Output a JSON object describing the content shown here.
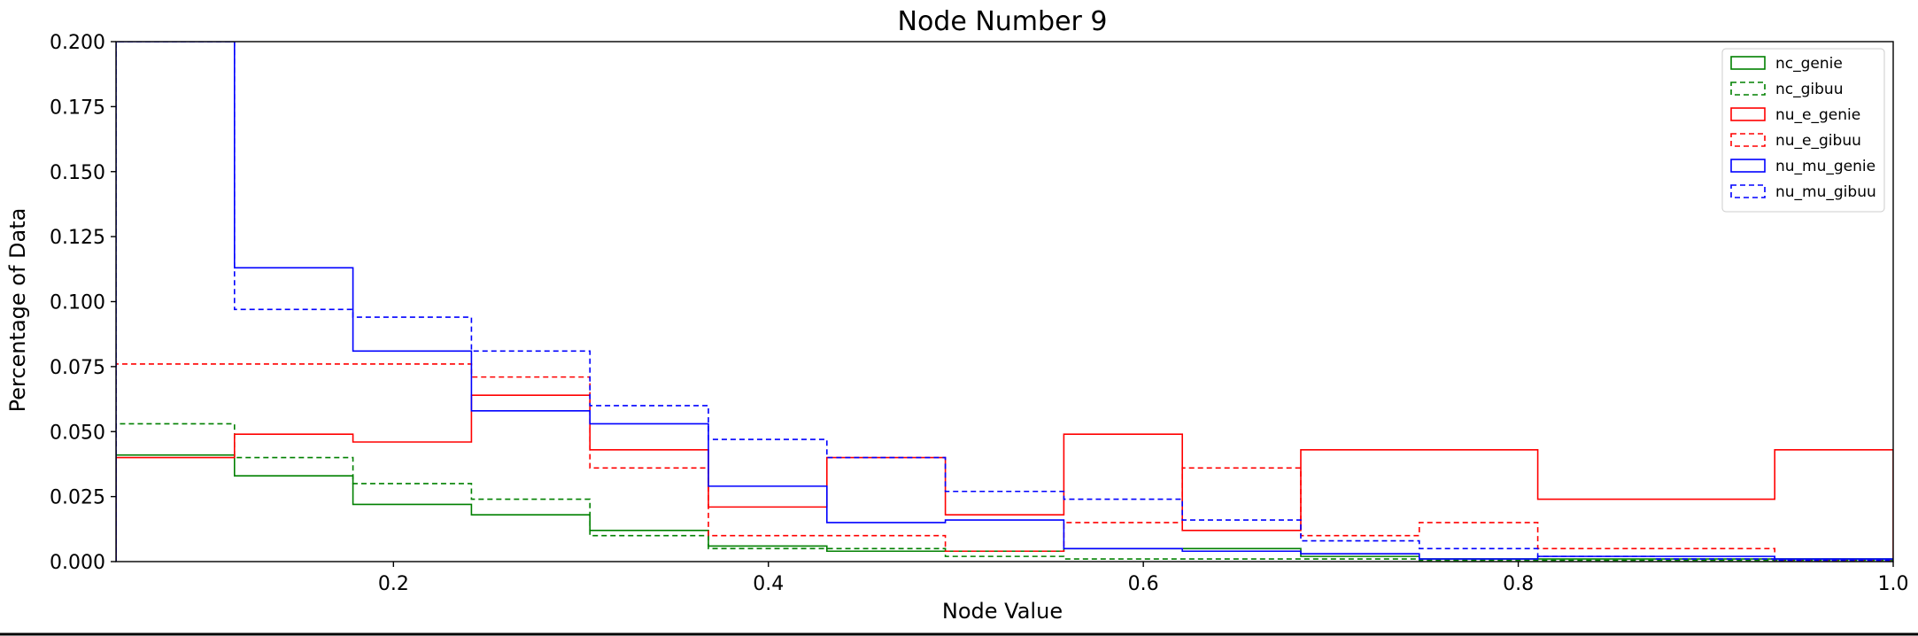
{
  "chart_data": {
    "type": "histogram-step",
    "title": "Node Number 9",
    "xlabel": "Node Value",
    "ylabel": "Percentage of Data",
    "xlim": [
      0.052,
      1.0
    ],
    "ylim": [
      0.0,
      0.2
    ],
    "xticks": [
      0.4,
      0.6,
      0.8,
      1.0,
      0.2
    ],
    "xtick_labels": [
      "0.4",
      "0.6",
      "0.8",
      "1.0",
      "0.2"
    ],
    "yticks": [
      0.0,
      0.025,
      0.05,
      0.075,
      0.1,
      0.125,
      0.15,
      0.175,
      0.2
    ],
    "ytick_labels": [
      "0.000",
      "0.025",
      "0.050",
      "0.075",
      "0.100",
      "0.125",
      "0.150",
      "0.175",
      "0.200"
    ],
    "legend_position": "top-right",
    "bin_edges": [
      0.052,
      0.1152,
      0.1784,
      0.2416,
      0.3048,
      0.368,
      0.4312,
      0.4944,
      0.5576,
      0.6208,
      0.684,
      0.7472,
      0.8104,
      0.8736,
      0.9368,
      1.0
    ],
    "series": [
      {
        "name": "nc_genie",
        "color": "#008000",
        "dashed": false,
        "values": [
          0.041,
          0.033,
          0.022,
          0.018,
          0.012,
          0.006,
          0.004,
          0.004,
          0.005,
          0.005,
          0.002,
          0.001,
          0.001,
          0.001,
          0.001
        ]
      },
      {
        "name": "nc_gibuu",
        "color": "#008000",
        "dashed": true,
        "values": [
          0.053,
          0.04,
          0.03,
          0.024,
          0.01,
          0.005,
          0.005,
          0.002,
          0.001,
          0.001,
          0.001,
          0.0005,
          0.0005,
          0.0005,
          0.0005
        ]
      },
      {
        "name": "nu_e_genie",
        "color": "#ff0000",
        "dashed": false,
        "values": [
          0.04,
          0.049,
          0.046,
          0.064,
          0.043,
          0.021,
          0.04,
          0.018,
          0.049,
          0.012,
          0.043,
          0.043,
          0.024,
          0.024,
          0.043
        ]
      },
      {
        "name": "nu_e_gibuu",
        "color": "#ff0000",
        "dashed": true,
        "values": [
          0.076,
          0.076,
          0.076,
          0.071,
          0.036,
          0.01,
          0.01,
          0.004,
          0.015,
          0.036,
          0.01,
          0.015,
          0.005,
          0.005,
          0.0005
        ]
      },
      {
        "name": "nu_mu_genie",
        "color": "#0000ff",
        "dashed": false,
        "values": [
          0.2,
          0.113,
          0.081,
          0.058,
          0.053,
          0.029,
          0.015,
          0.016,
          0.005,
          0.004,
          0.003,
          0.001,
          0.002,
          0.002,
          0.001
        ]
      },
      {
        "name": "nu_mu_gibuu",
        "color": "#0000ff",
        "dashed": true,
        "values": [
          0.2,
          0.097,
          0.094,
          0.081,
          0.06,
          0.047,
          0.04,
          0.027,
          0.024,
          0.016,
          0.008,
          0.005,
          0.002,
          0.001,
          0.0005
        ]
      }
    ]
  }
}
